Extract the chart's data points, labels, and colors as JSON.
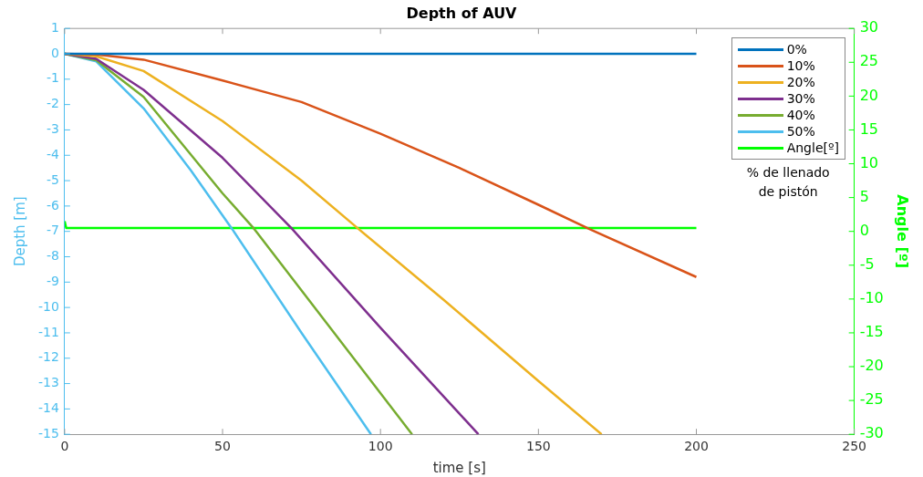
{
  "chart_data": {
    "type": "line",
    "title": "Depth of AUV",
    "xlabel": "time [s]",
    "ylabel": "Depth [m]",
    "y2label": "Angle [º]",
    "legend_title": "% de llenado de pistón",
    "xlim": [
      0,
      250
    ],
    "xticks": [
      0,
      50,
      100,
      150,
      200,
      250
    ],
    "ylim": [
      -15,
      1
    ],
    "yticks": [
      1,
      0,
      -1,
      -2,
      -3,
      -4,
      -5,
      -6,
      -7,
      -8,
      -9,
      -10,
      -11,
      -12,
      -13,
      -14,
      -15
    ],
    "y2lim": [
      -30,
      30
    ],
    "y2ticks": [
      30,
      25,
      20,
      15,
      10,
      5,
      0,
      -5,
      -10,
      -15,
      -20,
      -25,
      -30
    ],
    "grid": false,
    "legend": "top right",
    "marker": "none",
    "line_style": "solid",
    "series": [
      {
        "name": "0%",
        "color": "#0072bd",
        "x": [
          0,
          100,
          200
        ],
        "values": [
          0,
          0,
          0
        ]
      },
      {
        "name": "10%",
        "color": "#d95319",
        "x": [
          0,
          10,
          25,
          50,
          75,
          100,
          125,
          150,
          166,
          200
        ],
        "values": [
          0,
          -0.03,
          -0.23,
          -1.05,
          -1.9,
          -3.15,
          -4.5,
          -5.95,
          -6.9,
          -8.8
        ]
      },
      {
        "name": "20%",
        "color": "#edb120",
        "x": [
          0,
          10,
          25,
          50,
          75,
          93,
          120,
          150,
          170
        ],
        "values": [
          0,
          -0.1,
          -0.68,
          -2.65,
          -5,
          -6.9,
          -9.7,
          -12.9,
          -15
        ]
      },
      {
        "name": "30%",
        "color": "#7e2f8e",
        "x": [
          0,
          10,
          25,
          50,
          72,
          100,
          131
        ],
        "values": [
          0,
          -0.2,
          -1.42,
          -4.1,
          -6.9,
          -10.8,
          -15
        ]
      },
      {
        "name": "40%",
        "color": "#77ac30",
        "x": [
          0,
          10,
          25,
          50,
          60,
          85,
          110
        ],
        "values": [
          0,
          -0.25,
          -1.7,
          -5.5,
          -6.9,
          -10.95,
          -15
        ]
      },
      {
        "name": "50%",
        "color": "#4dbeee",
        "x": [
          0,
          10,
          25,
          40,
          53,
          75,
          97
        ],
        "values": [
          0,
          -0.3,
          -2.15,
          -4.6,
          -6.9,
          -11,
          -15
        ]
      },
      {
        "name": "Angle[º]",
        "color": "#00ff00",
        "axis": "y2",
        "x": [
          0,
          0.5,
          200
        ],
        "values": [
          1.5,
          0.5,
          0.5
        ]
      }
    ]
  }
}
